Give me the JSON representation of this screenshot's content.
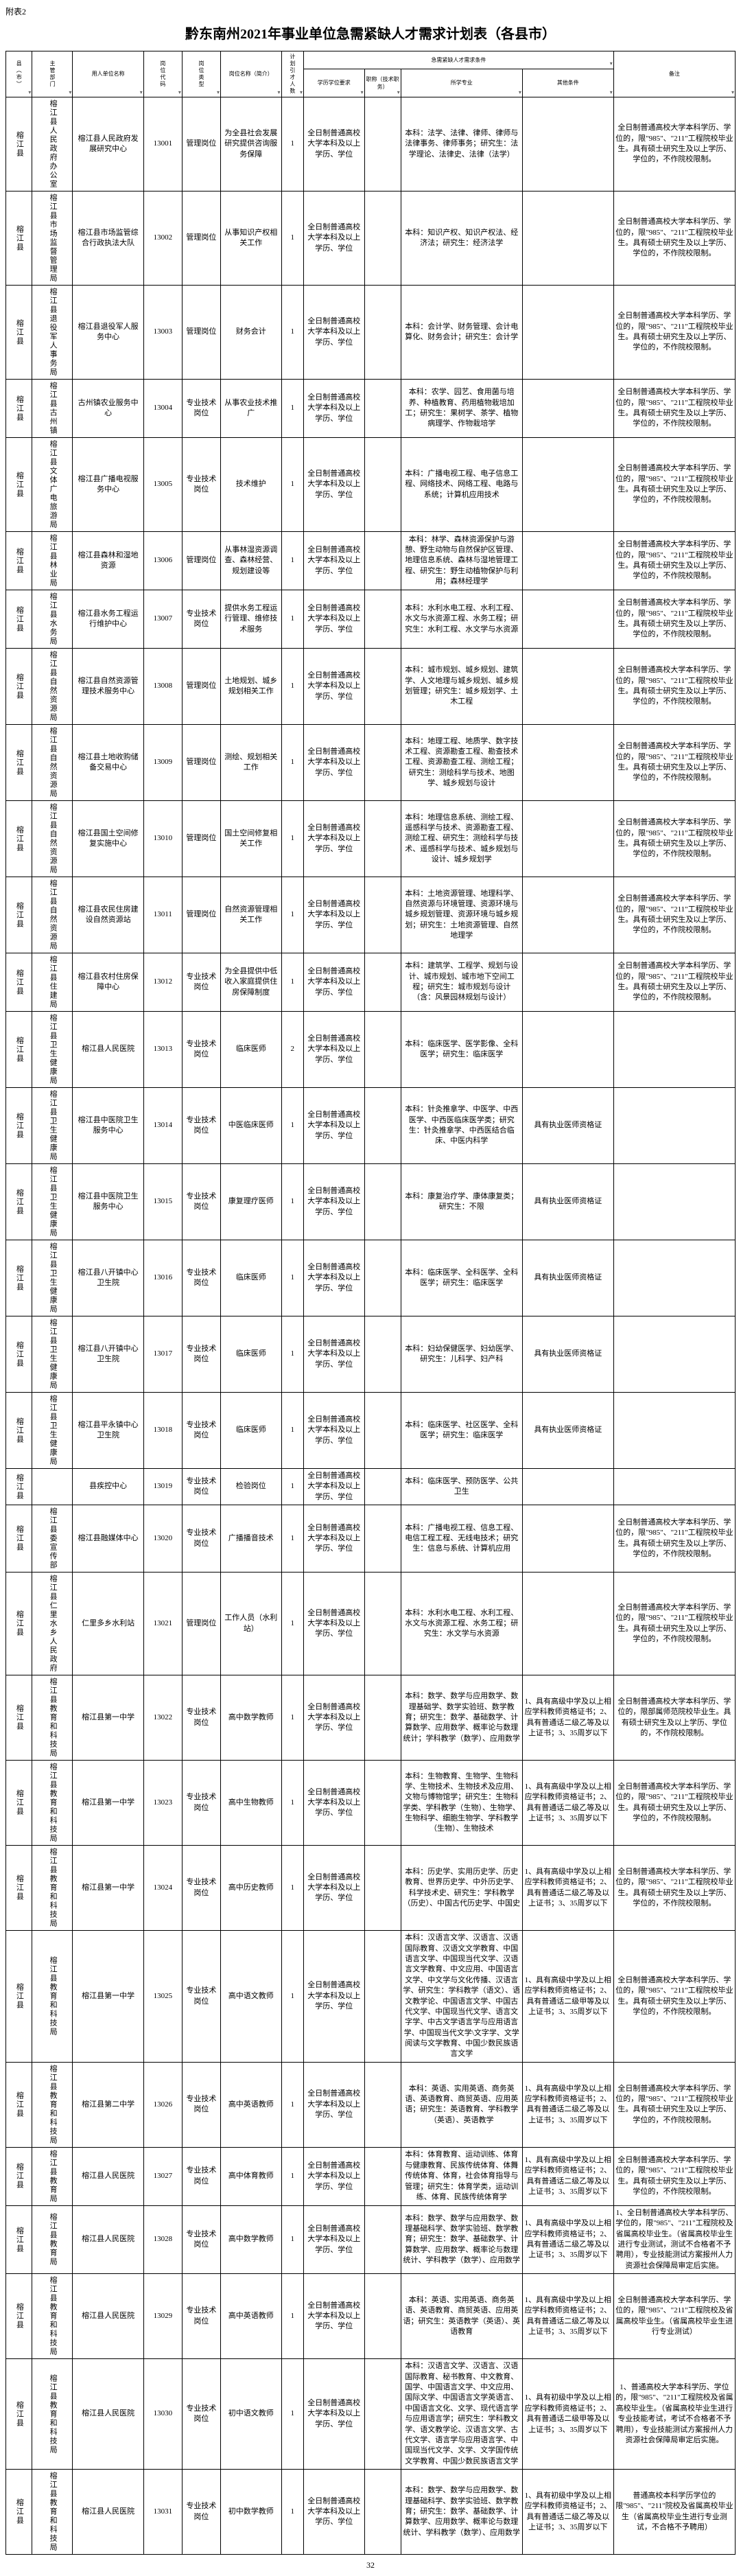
{
  "attachLabel": "附表2",
  "title": "黔东南州2021年事业单位急需紧缺人才需求计划表（各县市）",
  "pageNum": "32",
  "headers": {
    "county": "县（市）",
    "dept": "主管部门",
    "unit": "用人单位名称",
    "code": "岗位代码",
    "type": "岗位类型",
    "posname": "岗位名称（简介）",
    "count": "计划引才人数",
    "reqGroup": "急需紧缺人才需求条件",
    "edu": "学历学位要求",
    "protitle": "职称（技术职务）",
    "major": "所学专业",
    "other": "其他条件",
    "remark": "备注"
  },
  "rows": [
    {
      "county": "榕江县",
      "dept": "榕江县人民政府办公室",
      "unit": "榕江县人民政府发展研究中心",
      "code": "13001",
      "type": "管理岗位",
      "posname": "为全县社会发展研究提供咨询服务保障",
      "count": "1",
      "edu": "全日制普通高校大学本科及以上学历、学位",
      "protitle": "",
      "major": "本科：法学、法律、律师、律师与法律事务、律师事务；研究生：法学理论、法律史、法律（法学）",
      "other": "",
      "remark": "全日制普通高校大学本科学历、学位的，限\"985\"、\"211\"工程院校毕业生。具有硕士研究生及以上学历、学位的，不作院校限制。"
    },
    {
      "county": "榕江县",
      "dept": "榕江县市场监督管理局",
      "unit": "榕江县市场监管综合行政执法大队",
      "code": "13002",
      "type": "管理岗位",
      "posname": "从事知识产权相关工作",
      "count": "1",
      "edu": "全日制普通高校大学本科及以上学历、学位",
      "protitle": "",
      "major": "本科：知识产权、知识产权法、经济法；研究生：经济法学",
      "other": "",
      "remark": "全日制普通高校大学本科学历、学位的，限\"985\"、\"211\"工程院校毕业生。具有硕士研究生及以上学历、学位的，不作院校限制。"
    },
    {
      "county": "榕江县",
      "dept": "榕江县退役军人事务局",
      "unit": "榕江县退役军人服务中心",
      "code": "13003",
      "type": "管理岗位",
      "posname": "财务会计",
      "count": "1",
      "edu": "全日制普通高校大学本科及以上学历、学位",
      "protitle": "",
      "major": "本科：会计学、财务管理、会计电算化、财务会计；研究生：会计学",
      "other": "",
      "remark": "全日制普通高校大学本科学历、学位的，限\"985\"、\"211\"工程院校毕业生。具有硕士研究生及以上学历、学位的，不作院校限制。"
    },
    {
      "county": "榕江县",
      "dept": "榕江县古州镇",
      "unit": "古州镇农业服务中心",
      "code": "13004",
      "type": "专业技术岗位",
      "posname": "从事农业技术推广",
      "count": "1",
      "edu": "全日制普通高校大学本科及以上学历、学位",
      "protitle": "",
      "major": "本科：农学、园艺、食用菌与培养、种植教育、药用植物栽培加工；研究生：果树学、茶学、植物病理学、作物栽培学",
      "other": "",
      "remark": "全日制普通高校大学本科学历、学位的，限\"985\"、\"211\"工程院校毕业生。具有硕士研究生及以上学历、学位的，不作院校限制。"
    },
    {
      "county": "榕江县",
      "dept": "榕江县文体广电旅游局",
      "unit": "榕江县广播电视服务中心",
      "code": "13005",
      "type": "专业技术岗位",
      "posname": "技术维护",
      "count": "1",
      "edu": "全日制普通高校大学本科及以上学历、学位",
      "protitle": "",
      "major": "本科：广播电视工程、电子信息工程、网络技术、网络工程、电路与系统；计算机应用技术",
      "other": "",
      "remark": "全日制普通高校大学本科学历、学位的，限\"985\"、\"211\"工程院校毕业生。具有硕士研究生及以上学历、学位的，不作院校限制。"
    },
    {
      "county": "榕江县",
      "dept": "榕江县林业局",
      "unit": "榕江县森林和湿地资源",
      "code": "13006",
      "type": "管理岗位",
      "posname": "从事林湿资源调查、森林经营、规划建设等",
      "count": "1",
      "edu": "全日制普通高校大学本科及以上学历、学位",
      "protitle": "",
      "major": "本科：林学、森林资源保护与游憩、野生动物与自然保护区管理、地理信息系统、森林与湿地管理工程、研究生：野生动植物保护与利用；森林经理学",
      "other": "",
      "remark": "全日制普通高校大学本科学历、学位的，限\"985\"、\"211\"工程院校毕业生。具有硕士研究生及以上学历、学位的，不作院校限制。"
    },
    {
      "county": "榕江县",
      "dept": "榕江县水务局",
      "unit": "榕江县水务工程运行维护中心",
      "code": "13007",
      "type": "专业技术岗位",
      "posname": "提供水务工程运行管理、维修技术服务",
      "count": "1",
      "edu": "全日制普通高校大学本科及以上学历、学位",
      "protitle": "",
      "major": "本科：水利水电工程、水利工程、水文与水资源工程、水务工程；研究生：水利工程、水文学与水资源",
      "other": "",
      "remark": "全日制普通高校大学本科学历、学位的，限\"985\"、\"211\"工程院校毕业生。具有硕士研究生及以上学历、学位的，不作院校限制。"
    },
    {
      "county": "榕江县",
      "dept": "榕江县自然资源局",
      "unit": "榕江县自然资源管理技术服务中心",
      "code": "13008",
      "type": "管理岗位",
      "posname": "土地规划、城乡规划相关工作",
      "count": "1",
      "edu": "全日制普通高校大学本科及以上学历、学位",
      "protitle": "",
      "major": "本科：城市规划、城乡规划、建筑学、人文地理与城乡规划、城乡规划管理；研究生：城乡规划学、土木工程",
      "other": "",
      "remark": "全日制普通高校大学本科学历、学位的，限\"985\"、\"211\"工程院校毕业生。具有硕士研究生及以上学历、学位的，不作院校限制。"
    },
    {
      "county": "榕江县",
      "dept": "榕江县自然资源局",
      "unit": "榕江县土地收购储备交易中心",
      "code": "13009",
      "type": "管理岗位",
      "posname": "测绘、规划相关工作",
      "count": "1",
      "edu": "全日制普通高校大学本科及以上学历、学位",
      "protitle": "",
      "major": "本科：地理工程、地质学、数字技术工程、资源勘查工程、勘查技术工程、资源勘查工程、测绘工程；研究生：测绘科学与技术、地图学、城乡规划与设计",
      "other": "",
      "remark": "全日制普通高校大学本科学历、学位的，限\"985\"、\"211\"工程院校毕业生。具有硕士研究生及以上学历、学位的，不作院校限制。"
    },
    {
      "county": "榕江县",
      "dept": "榕江县自然资源局",
      "unit": "榕江县国土空间修复实施中心",
      "code": "13010",
      "type": "管理岗位",
      "posname": "国土空间修复相关工作",
      "count": "1",
      "edu": "全日制普通高校大学本科及以上学历、学位",
      "protitle": "",
      "major": "本科：地理信息系统、测绘工程、遥感科学与技术、资源勘查工程、测绘工程、研究生：测绘科学与技术、遥感科学与技术、城乡规划与设计、城乡规划学",
      "other": "",
      "remark": "全日制普通高校大学本科学历、学位的，限\"985\"、\"211\"工程院校毕业生。具有硕士研究生及以上学历、学位的，不作院校限制。"
    },
    {
      "county": "榕江县",
      "dept": "榕江县自然资源局",
      "unit": "榕江县农民住房建设自然资源站",
      "code": "13011",
      "type": "管理岗位",
      "posname": "自然资源管理相关工作",
      "count": "1",
      "edu": "全日制普通高校大学本科及以上学历、学位",
      "protitle": "",
      "major": "本科：土地资源管理、地理科学、自然资源与环境管理、资源环境与城乡规划管理、资源环境与城乡规划；研究生：土地资源管理、自然地理学",
      "other": "",
      "remark": "全日制普通高校大学本科学历、学位的，限\"985\"、\"211\"工程院校毕业生。具有硕士研究生及以上学历、学位的，不作院校限制。"
    },
    {
      "county": "榕江县",
      "dept": "榕江县住建局",
      "unit": "榕江县农村住房保障中心",
      "code": "13012",
      "type": "专业技术岗位",
      "posname": "为全县提供中低收入家庭提供住房保障制度",
      "count": "1",
      "edu": "全日制普通高校大学本科及以上学历、学位",
      "protitle": "",
      "major": "本科：建筑学、工程学、规划与设计、城市规划、城市地下空间工程；研究生：城市规划与设计（含：风景园林规划与设计）",
      "other": "",
      "remark": "全日制普通高校大学本科学历、学位的，限\"985\"、\"211\"工程院校毕业生。具有硕士研究生及以上学历、学位的，不作院校限制。"
    },
    {
      "county": "榕江县",
      "dept": "榕江县卫生健康局",
      "unit": "榕江县人民医院",
      "code": "13013",
      "type": "专业技术岗位",
      "posname": "临床医师",
      "count": "2",
      "edu": "全日制普通高校大学本科及以上学历、学位",
      "protitle": "",
      "major": "本科：临床医学、医学影像、全科医学；研究生：临床医学",
      "other": "",
      "remark": ""
    },
    {
      "county": "榕江县",
      "dept": "榕江县卫生健康局",
      "unit": "榕江县中医院卫生服务中心",
      "code": "13014",
      "type": "专业技术岗位",
      "posname": "中医临床医师",
      "count": "1",
      "edu": "全日制普通高校大学本科及以上学历、学位",
      "protitle": "",
      "major": "本科：针灸推拿学、中医学、中西医学、中西医临床医学类；研究生：针灸推拿学、中西医结合临床、中医内科学",
      "other": "具有执业医师资格证",
      "remark": ""
    },
    {
      "county": "榕江县",
      "dept": "榕江县卫生健康局",
      "unit": "榕江县中医院卫生服务中心",
      "code": "13015",
      "type": "专业技术岗位",
      "posname": "康复理疗医师",
      "count": "1",
      "edu": "全日制普通高校大学本科及以上学历、学位",
      "protitle": "",
      "major": "本科：康复治疗学、康体康复类；研究生：不限",
      "other": "具有执业医师资格证",
      "remark": ""
    },
    {
      "county": "榕江县",
      "dept": "榕江县卫生健康局",
      "unit": "榕江县八开镇中心卫生院",
      "code": "13016",
      "type": "专业技术岗位",
      "posname": "临床医师",
      "count": "1",
      "edu": "全日制普通高校大学本科及以上学历、学位",
      "protitle": "",
      "major": "本科：临床医学、全科医学、全科医学；研究生：临床医学",
      "other": "具有执业医师资格证",
      "remark": ""
    },
    {
      "county": "榕江县",
      "dept": "榕江县卫生健康局",
      "unit": "榕江县八开镇中心卫生院",
      "code": "13017",
      "type": "专业技术岗位",
      "posname": "临床医师",
      "count": "1",
      "edu": "全日制普通高校大学本科及以上学历、学位",
      "protitle": "",
      "major": "本科：妇幼保健医学、妇幼医学、研究生：儿科学、妇产科",
      "other": "具有执业医师资格证",
      "remark": ""
    },
    {
      "county": "榕江县",
      "dept": "榕江县卫生健康局",
      "unit": "榕江县平永镇中心卫生院",
      "code": "13018",
      "type": "专业技术岗位",
      "posname": "临床医师",
      "count": "1",
      "edu": "全日制普通高校大学本科及以上学历、学位",
      "protitle": "",
      "major": "本科：临床医学、社区医学、全科医学；研究生：临床医学",
      "other": "具有执业医师资格证",
      "remark": ""
    },
    {
      "county": "榕江县",
      "dept": "",
      "unit": "县疾控中心",
      "code": "13019",
      "type": "专业技术岗位",
      "posname": "检验岗位",
      "count": "1",
      "edu": "全日制普通高校大学本科及以上学历、学位",
      "protitle": "",
      "major": "本科：临床医学、预防医学、公共卫生",
      "other": "",
      "remark": ""
    },
    {
      "county": "榕江县",
      "dept": "榕江县委宣传部",
      "unit": "榕江县融媒体中心",
      "code": "13020",
      "type": "专业技术岗位",
      "posname": "广播播音技术",
      "count": "1",
      "edu": "全日制普通高校大学本科及以上学历、学位",
      "protitle": "",
      "major": "本科：广播电视工程、信息工程、电信工程工程、无线电技术；研究生：信息与系统、计算机应用",
      "other": "",
      "remark": "全日制普通高校大学本科学历、学位的，限\"985\"、\"211\"工程院校毕业生。具有硕士研究生及以上学历、学位的，不作院校限制。"
    },
    {
      "county": "榕江县",
      "dept": "榕江县仁里水乡人民政府",
      "unit": "仁里多乡水利站",
      "code": "13021",
      "type": "管理岗位",
      "posname": "工作人员（水利站）",
      "count": "1",
      "edu": "全日制普通高校大学本科及以上学历、学位",
      "protitle": "",
      "major": "本科：水利水电工程、水利工程、水文与水资源工程、水务工程；研究生：水文学与水资源",
      "other": "",
      "remark": "全日制普通高校大学本科学历、学位的，限\"985\"、\"211\"工程院校毕业生。具有硕士研究生及以上学历、学位的，不作院校限制。"
    },
    {
      "county": "榕江县",
      "dept": "榕江县教育和科技局",
      "unit": "榕江县第一中学",
      "code": "13022",
      "type": "专业技术岗位",
      "posname": "高中数学教师",
      "count": "1",
      "edu": "全日制普通高校大学本科及以上学历、学位",
      "protitle": "",
      "major": "本科：数学、数学与应用数学、数理基础学、数学实验班、数学教育；研究生：数学、基础数学、计算数学、应用数学、概率论与数理统计；学科教学（数学）、应用数学",
      "other": "1、具有高级中学及以上相应学科教师资格证书；2、具有普通话二级乙等及以上证书；3、35周岁以下",
      "remark": "全日制普通高校大学本科学历、学位的，限部属师范院校毕业生。具有硕士研究生及以上学历、学位的，不作院校限制。"
    },
    {
      "county": "榕江县",
      "dept": "榕江县教育和科技局",
      "unit": "榕江县第一中学",
      "code": "13023",
      "type": "专业技术岗位",
      "posname": "高中生物教师",
      "count": "1",
      "edu": "全日制普通高校大学本科及以上学历、学位",
      "protitle": "",
      "major": "本科：生物教育、生物学、生物科学、生物技术、生物技术及应用、文物与博物馆学；研究生：生物科学类、学科教学（生物）、生物学、生物科学、细胞生物学、学科教学（生物）、生物技术",
      "other": "1、具有高级中学及以上相应学科教师资格证书；2、具有普通话二级乙等及以上证书；3、35周岁以下",
      "remark": "全日制普通高校大学本科学历、学位的，限\"985\"、\"211\"工程院校毕业生。具有硕士研究生及以上学历、学位的，不作院校限制。"
    },
    {
      "county": "榕江县",
      "dept": "榕江县教育和科技局",
      "unit": "榕江县第一中学",
      "code": "13024",
      "type": "专业技术岗位",
      "posname": "高中历史教师",
      "count": "1",
      "edu": "全日制普通高校大学本科及以上学历、学位",
      "protitle": "",
      "major": "本科：历史学、实用历史学、历史教育、世界历史学、中外历史学、科学技术史、研究生：学科教学（历史）、中国古代历史学、中国史",
      "other": "1、具有高级中学及以上相应学科教师资格证书；2、具有普通话二级乙等及以上证书；3、35周岁以下",
      "remark": "全日制普通高校大学本科学历、学位的，限\"985\"、\"211\"工程院校毕业生。具有硕士研究生及以上学历、学位的，不作院校限制。"
    },
    {
      "county": "榕江县",
      "dept": "榕江县教育和科技局",
      "unit": "榕江县第一中学",
      "code": "13025",
      "type": "专业技术岗位",
      "posname": "高中语文教师",
      "count": "1",
      "edu": "全日制普通高校大学本科及以上学历、学位",
      "protitle": "",
      "major": "本科：汉语言文学、汉语言、汉语国际教育、汉语文文学教育、中国语言文学、中国现当代文学、汉语言文学教育、中文应用、中国语言文学、中文学与文化传播、汉语言学、研究生：学科教学（语文）、语文教学论、中国语言文学、中国古代文学、中国现当代文学、语言文字学、中古文学语言学与应用语言学、中国现当代文学\\文字学、文学阅读与文学教育、中国少数民族语言文学",
      "other": "1、具有高级中学及以上相应学科教师资格证书；2、具有普通话二级甲等及以上证书；3、35周岁以下",
      "remark": "全日制普通高校大学本科学历、学位的，限\"985\"、\"211\"工程院校毕业生。具有硕士研究生及以上学历、学位的，不作院校限制。"
    },
    {
      "county": "榕江县",
      "dept": "榕江县教育和科技局",
      "unit": "榕江县第二中学",
      "code": "13026",
      "type": "专业技术岗位",
      "posname": "高中英语教师",
      "count": "1",
      "edu": "全日制普通高校大学本科及以上学历、学位",
      "protitle": "",
      "major": "本科：英语、实用英语、商务英语、英语教育、商贸英语、应用英语；研究生：英语教育、学科教学（英语）、英语教学",
      "other": "1、具有高级中学及以上相应学科教师资格证书；2、具有普通话二级乙等及以上证书；3、35周岁以下",
      "remark": "全日制普通高校大学本科学历、学位的，限\"985\"、\"211\"工程院校毕业生。具有硕士研究生及以上学历、学位的，不作院校限制。"
    },
    {
      "county": "榕江县",
      "dept": "榕江县教育局",
      "unit": "榕江县人民医院",
      "code": "13027",
      "type": "专业技术岗位",
      "posname": "高中体育教师",
      "count": "1",
      "edu": "全日制普通高校大学本科及以上学历、学位",
      "protitle": "",
      "major": "本科：体育教育、运动训练、体育与健康教育、民族传统体育、体舞传统体育、体育，社会体育指导与管理；研究生：体育学类，运动训练、体育、民族传统体育学",
      "other": "1、具有高级中学及以上相应学科教师资格证书；2、具有普通话二级乙等及以上证书；3、35周岁以下",
      "remark": "全日制普通高校大学本科学历、学位的，限\"985\"、\"211\"工程院校毕业生。具有硕士研究生及以上学历、学位的，不作院校限制。"
    },
    {
      "county": "榕江县",
      "dept": "榕江县教育局",
      "unit": "榕江县人民医院",
      "code": "13028",
      "type": "专业技术岗位",
      "posname": "高中数学教师",
      "count": "1",
      "edu": "全日制普通高校大学本科及以上学历、学位",
      "protitle": "",
      "major": "本科：数学、数学与应用数学、数理基础科学、数学实验班、数学教育；研究生：数学、基础数学、计算数学、应用数学、概率论与数理统计、学科教学（数学）、应用数学",
      "other": "1、具有高级中学及以上相应学科教师资格证书；2、具有普通话二级乙等及以上证书；3、35周岁以下",
      "remark": "1、全日制普通高校大学本科学历、学位的，限\"985\"、\"211\"工程院校及省属高校毕业生。（省属高校毕业生进行专业测试，测试不合格者不予聘用），专业技能测试方案报州人力资源社会保障局审定后实施。"
    },
    {
      "county": "榕江县",
      "dept": "榕江县教育和科技局",
      "unit": "榕江县人民医院",
      "code": "13029",
      "type": "专业技术岗位",
      "posname": "高中英语教师",
      "count": "1",
      "edu": "全日制普通高校大学本科及以上学历、学位",
      "protitle": "",
      "major": "本科：英语、实用英语、商务英语、英语教育、商贸英语、应用英语；研究生：英语教学（英语）、英语教育",
      "other": "1、具有高级中学及以上相应学科教师资格证书；2、具有普通话二级乙等及以上证书；3、35周岁以下",
      "remark": "全日制普通高校大学本科学历、学位的，限\"985\"、\"211\"工程院校及省属高校毕业生。（省属高校毕业生进行专业测试）"
    },
    {
      "county": "榕江县",
      "dept": "榕江县教育和科技局",
      "unit": "榕江县人民医院",
      "code": "13030",
      "type": "专业技术岗位",
      "posname": "初中语文教师",
      "count": "1",
      "edu": "全日制普通高校大学本科及以上学历、学位",
      "protitle": "",
      "major": "本科：汉语言文学、汉语言、汉语国际教育、秘书教育、中文教育、国学、中国语言文学、中文应用、国际文学、中国语言文学英语言、中国语言文化、文学、现代语言学与应用语言学；研究生：学科教文学、语文教学论、汉语言文学、古代文学、语言学与应用语言学、中国现当代文学、文学、文学国传统文学教育、中国少数民族语言文学",
      "other": "1、具有初级中学及以上相应学科教师资格证书；2、具有普通话二级甲等及以上证书；3、35周岁以下",
      "remark": "1、普通高校大学本科学历、学位的，限\"985\"、\"211\"工程院校及省属高校毕业生。（省属高校毕业生进行专业技能考试，考试不合格者不予聘用），专业技能测试方案报州人力资源社会保障局审定后实施。"
    },
    {
      "county": "榕江县",
      "dept": "榕江县教育和科技局",
      "unit": "榕江县人民医院",
      "code": "13031",
      "type": "专业技术岗位",
      "posname": "初中数学教师",
      "count": "1",
      "edu": "全日制普通高校大学本科及以上学历、学位",
      "protitle": "",
      "major": "本科：数学、数学与应用数学、数理基础科学、数学实验班、数学教育；研究生：数学、基础数学、计算数学、应用数学、概率论与数理统计、学科教学（数学）、应用数学",
      "other": "1、具有初级中学及以上相应学科教师资格证书；2、具有普通话二级乙等及以上证书；3、35周岁以下",
      "remark": "普通高校本科学历学位的限\"985\"、\"211\"院校及省属高校毕业生（省属高校毕业生进行专业测试，不合格不予聘用）"
    }
  ]
}
